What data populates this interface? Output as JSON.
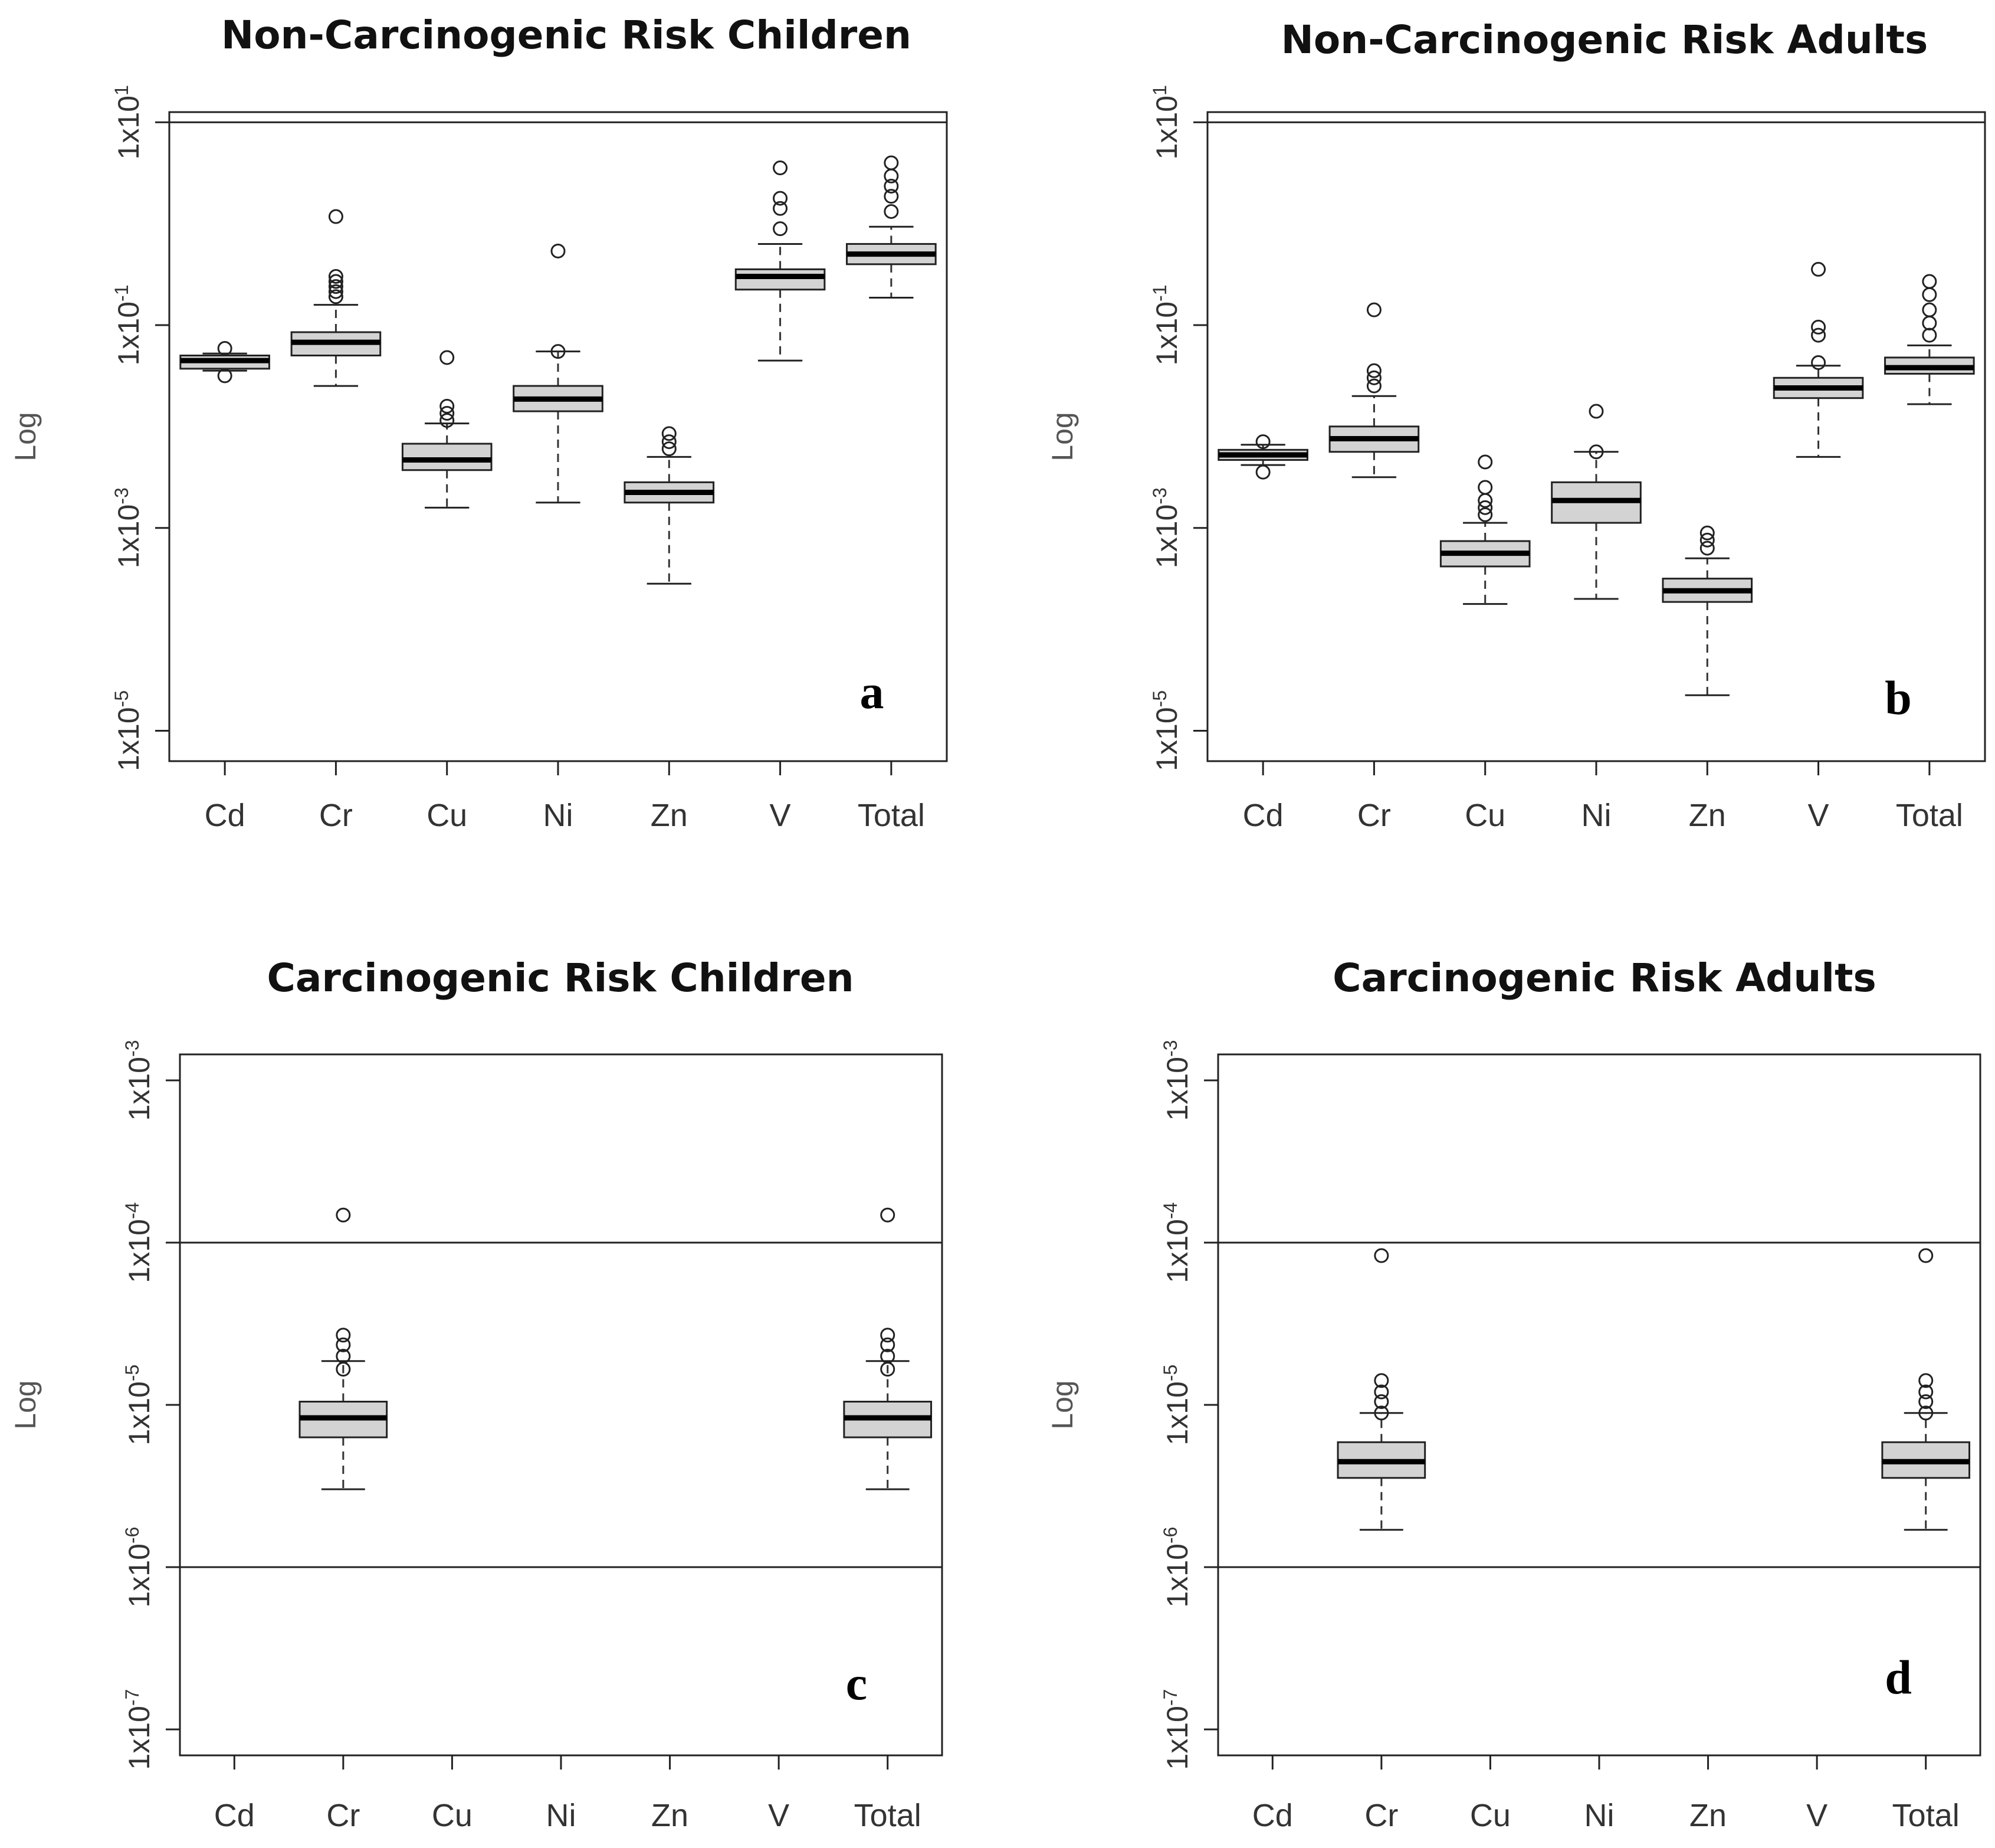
{
  "chart_data": [
    {
      "type": "boxplot",
      "panel_label": "a",
      "title": "Non-Carcinogenic Risk Children",
      "ylabel": "Log",
      "yscale": "log",
      "ylim_log10": [
        -5.3,
        1.1
      ],
      "yticks": [
        {
          "base": "1x10",
          "exp": "1"
        },
        {
          "base": "1x10",
          "exp": "-1"
        },
        {
          "base": "1x10",
          "exp": "-3"
        },
        {
          "base": "1x10",
          "exp": "-5"
        }
      ],
      "ytick_log10": [
        1,
        -1,
        -3,
        -5
      ],
      "threshold_lines": [
        1
      ],
      "categories": [
        "Cd",
        "Cr",
        "Cu",
        "Ni",
        "Zn",
        "V",
        "Total"
      ],
      "boxes_log10": [
        {
          "cat": "Cd",
          "lo": -1.45,
          "q1": -1.43,
          "med": -1.35,
          "q3": -1.3,
          "hi": -1.28,
          "outliers": [
            -1.23,
            -1.5
          ]
        },
        {
          "cat": "Cr",
          "lo": -1.6,
          "q1": -1.3,
          "med": -1.17,
          "q3": -1.07,
          "hi": -0.8,
          "outliers": [
            -0.72,
            -0.67,
            -0.62,
            -0.57,
            -0.52,
            0.07
          ]
        },
        {
          "cat": "Cu",
          "lo": -2.8,
          "q1": -2.43,
          "med": -2.33,
          "q3": -2.17,
          "hi": -1.97,
          "outliers": [
            -1.94,
            -1.87,
            -1.8,
            -1.32
          ]
        },
        {
          "cat": "Ni",
          "lo": -2.75,
          "q1": -1.85,
          "med": -1.73,
          "q3": -1.6,
          "hi": -1.26,
          "outliers": [
            -1.26,
            -0.27
          ]
        },
        {
          "cat": "Zn",
          "lo": -3.55,
          "q1": -2.75,
          "med": -2.65,
          "q3": -2.55,
          "hi": -2.3,
          "outliers": [
            -2.22,
            -2.15,
            -2.07
          ]
        },
        {
          "cat": "V",
          "lo": -1.35,
          "q1": -0.65,
          "med": -0.52,
          "q3": -0.45,
          "hi": -0.2,
          "outliers": [
            -0.05,
            0.15,
            0.25,
            0.55
          ]
        },
        {
          "cat": "Total",
          "lo": -0.73,
          "q1": -0.4,
          "med": -0.3,
          "q3": -0.2,
          "hi": -0.03,
          "outliers": [
            0.12,
            0.27,
            0.37,
            0.47,
            0.6
          ]
        }
      ]
    },
    {
      "type": "boxplot",
      "panel_label": "b",
      "title": "Non-Carcinogenic Risk Adults",
      "ylabel": "Log",
      "yscale": "log",
      "ylim_log10": [
        -5.3,
        1.1
      ],
      "yticks": [
        {
          "base": "1x10",
          "exp": "1"
        },
        {
          "base": "1x10",
          "exp": "-1"
        },
        {
          "base": "1x10",
          "exp": "-3"
        },
        {
          "base": "1x10",
          "exp": "-5"
        }
      ],
      "ytick_log10": [
        1,
        -1,
        -3,
        -5
      ],
      "threshold_lines": [
        1
      ],
      "categories": [
        "Cd",
        "Cr",
        "Cu",
        "Ni",
        "Zn",
        "V",
        "Total"
      ],
      "boxes_log10": [
        {
          "cat": "Cd",
          "lo": -2.38,
          "q1": -2.33,
          "med": -2.28,
          "q3": -2.23,
          "hi": -2.18,
          "outliers": [
            -2.15,
            -2.45
          ]
        },
        {
          "cat": "Cr",
          "lo": -2.5,
          "q1": -2.25,
          "med": -2.12,
          "q3": -2.0,
          "hi": -1.7,
          "outliers": [
            -1.6,
            -1.52,
            -1.45,
            -0.85
          ]
        },
        {
          "cat": "Cu",
          "lo": -3.75,
          "q1": -3.38,
          "med": -3.25,
          "q3": -3.13,
          "hi": -2.95,
          "outliers": [
            -2.87,
            -2.8,
            -2.73,
            -2.6,
            -2.35
          ]
        },
        {
          "cat": "Ni",
          "lo": -3.7,
          "q1": -2.95,
          "med": -2.73,
          "q3": -2.55,
          "hi": -2.25,
          "outliers": [
            -2.25,
            -1.85
          ]
        },
        {
          "cat": "Zn",
          "lo": -4.65,
          "q1": -3.73,
          "med": -3.62,
          "q3": -3.5,
          "hi": -3.3,
          "outliers": [
            -3.2,
            -3.12,
            -3.05
          ]
        },
        {
          "cat": "V",
          "lo": -2.3,
          "q1": -1.72,
          "med": -1.62,
          "q3": -1.52,
          "hi": -1.4,
          "outliers": [
            -1.37,
            -1.1,
            -1.02,
            -0.45
          ]
        },
        {
          "cat": "Total",
          "lo": -1.78,
          "q1": -1.48,
          "med": -1.42,
          "q3": -1.32,
          "hi": -1.2,
          "outliers": [
            -1.1,
            -0.98,
            -0.85,
            -0.7,
            -0.57
          ]
        }
      ]
    },
    {
      "type": "boxplot",
      "panel_label": "c",
      "title": "Carcinogenic Risk Children",
      "ylabel": "Log",
      "yscale": "log",
      "ylim_log10": [
        -7.16,
        -2.84
      ],
      "yticks": [
        {
          "base": "1x10",
          "exp": "-3"
        },
        {
          "base": "1x10",
          "exp": "-4"
        },
        {
          "base": "1x10",
          "exp": "-5"
        },
        {
          "base": "1x10",
          "exp": "-6"
        },
        {
          "base": "1x10",
          "exp": "-7"
        }
      ],
      "ytick_log10": [
        -3,
        -4,
        -5,
        -6,
        -7
      ],
      "threshold_lines": [
        -4,
        -6
      ],
      "categories": [
        "Cd",
        "Cr",
        "Cu",
        "Ni",
        "Zn",
        "V",
        "Total"
      ],
      "boxes_log10": [
        {
          "cat": "Cr",
          "lo": -5.52,
          "q1": -5.2,
          "med": -5.08,
          "q3": -4.98,
          "hi": -4.73,
          "outliers": [
            -4.57,
            -4.63,
            -4.7,
            -4.78,
            -3.83
          ]
        },
        {
          "cat": "Total",
          "lo": -5.52,
          "q1": -5.2,
          "med": -5.08,
          "q3": -4.98,
          "hi": -4.73,
          "outliers": [
            -4.57,
            -4.63,
            -4.7,
            -4.78,
            -3.83
          ]
        }
      ]
    },
    {
      "type": "boxplot",
      "panel_label": "d",
      "title": "Carcinogenic Risk Adults",
      "ylabel": "Log",
      "yscale": "log",
      "ylim_log10": [
        -7.16,
        -2.84
      ],
      "yticks": [
        {
          "base": "1x10",
          "exp": "-3"
        },
        {
          "base": "1x10",
          "exp": "-4"
        },
        {
          "base": "1x10",
          "exp": "-5"
        },
        {
          "base": "1x10",
          "exp": "-6"
        },
        {
          "base": "1x10",
          "exp": "-7"
        }
      ],
      "ytick_log10": [
        -3,
        -4,
        -5,
        -6,
        -7
      ],
      "threshold_lines": [
        -4,
        -6
      ],
      "categories": [
        "Cd",
        "Cr",
        "Cu",
        "Ni",
        "Zn",
        "V",
        "Total"
      ],
      "boxes_log10": [
        {
          "cat": "Cr",
          "lo": -5.77,
          "q1": -5.45,
          "med": -5.35,
          "q3": -5.23,
          "hi": -5.05,
          "outliers": [
            -4.85,
            -4.92,
            -4.98,
            -5.05,
            -4.08
          ]
        },
        {
          "cat": "Total",
          "lo": -5.77,
          "q1": -5.45,
          "med": -5.35,
          "q3": -5.23,
          "hi": -5.05,
          "outliers": [
            -4.85,
            -4.92,
            -4.98,
            -5.05,
            -4.08
          ]
        }
      ]
    }
  ]
}
